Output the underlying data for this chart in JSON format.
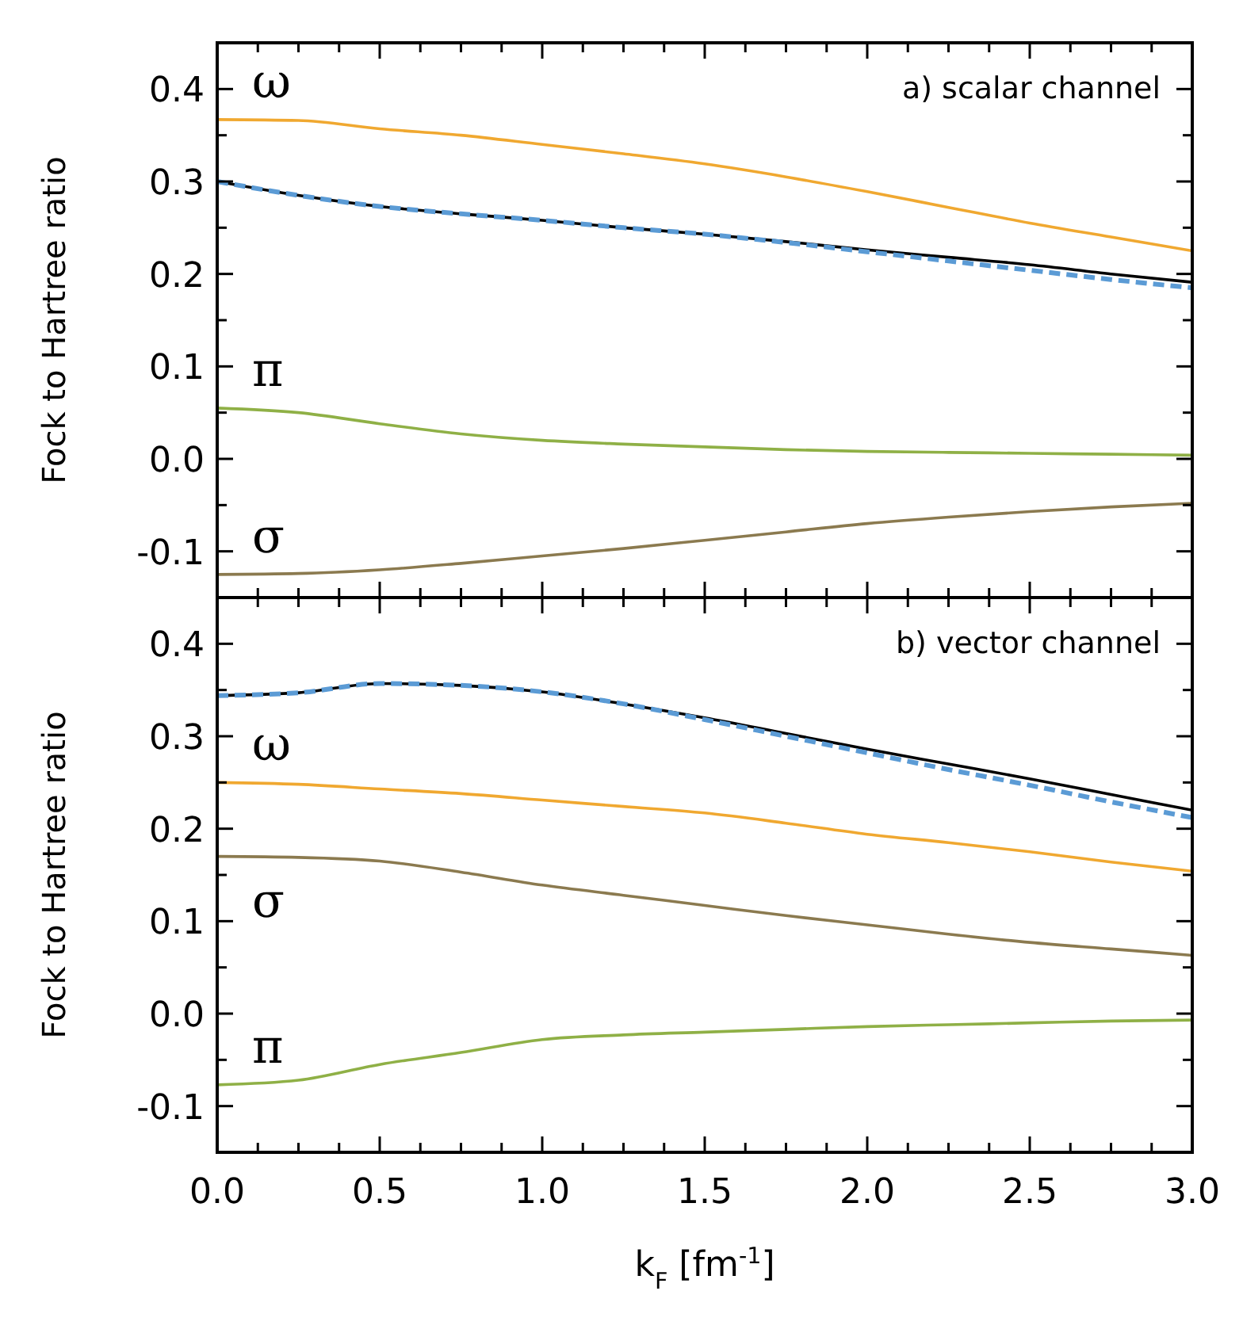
{
  "chart_data": [
    {
      "type": "line",
      "ylabel": "Fock to Hartree ratio",
      "annotations": [
        "a) scalar channel"
      ],
      "x": [
        0,
        0.25,
        0.5,
        0.75,
        1,
        1.25,
        1.5,
        1.75,
        2,
        2.25,
        2.5,
        2.75,
        3
      ],
      "xlim": [
        0,
        3
      ],
      "ylim": [
        -0.15,
        0.45
      ],
      "tick_labels": "y",
      "xticks": [
        0,
        {
          "value": 0.125,
          "label": null
        },
        {
          "value": 0.25,
          "label": null
        },
        {
          "value": 0.375,
          "label": null
        },
        0.5,
        {
          "value": 0.625,
          "label": null
        },
        {
          "value": 0.75,
          "label": null
        },
        {
          "value": 0.875,
          "label": null
        },
        1,
        {
          "value": 1.125,
          "label": null
        },
        {
          "value": 1.25,
          "label": null
        },
        {
          "value": 1.375,
          "label": null
        },
        1.5,
        {
          "value": 1.625,
          "label": null
        },
        {
          "value": 1.75,
          "label": null
        },
        {
          "value": 1.875,
          "label": null
        },
        2,
        {
          "value": 2.125,
          "label": null
        },
        {
          "value": 2.25,
          "label": null
        },
        {
          "value": 2.375,
          "label": null
        },
        2.5,
        {
          "value": 2.625,
          "label": null
        },
        {
          "value": 2.75,
          "label": null
        },
        {
          "value": 2.875,
          "label": null
        },
        3
      ],
      "yticks": [
        {
          "value": -0.15,
          "label": null
        },
        -0.1,
        {
          "value": -0.05,
          "label": null
        },
        {
          "value": 0,
          "label": "0.0"
        },
        {
          "value": 0.05,
          "label": null
        },
        0.1,
        {
          "value": 0.15,
          "label": null
        },
        0.2,
        {
          "value": 0.25,
          "label": null
        },
        0.3,
        {
          "value": 0.35,
          "label": null
        },
        0.4,
        {
          "value": 0.45,
          "label": null
        }
      ],
      "series": [
        {
          "color": "#000000",
          "line_style": "solid",
          "values": [
            0.3,
            0.285,
            0.273,
            0.265,
            0.258,
            0.25,
            0.243,
            0.235,
            0.226,
            0.218,
            0.21,
            0.2,
            0.191
          ]
        },
        {
          "color": "#5b9bd5",
          "line_style": "dashed",
          "values": [
            0.3,
            0.285,
            0.273,
            0.265,
            0.258,
            0.25,
            0.243,
            0.234,
            0.224,
            0.214,
            0.204,
            0.194,
            0.185
          ]
        },
        {
          "name": "ω",
          "color": "#f0a830",
          "line_style": "solid",
          "values": [
            0.367,
            0.366,
            0.357,
            0.35,
            0.34,
            0.33,
            0.319,
            0.305,
            0.289,
            0.272,
            0.255,
            0.24,
            0.225
          ]
        },
        {
          "name": "π",
          "color": "#8fb046",
          "line_style": "solid",
          "values": [
            0.055,
            0.05,
            0.038,
            0.027,
            0.02,
            0.016,
            0.013,
            0.01,
            0.008,
            0.007,
            0.006,
            0.005,
            0.004
          ]
        },
        {
          "name": "σ",
          "color": "#8b7a4f",
          "line_style": "solid",
          "values": [
            -0.125,
            -0.124,
            -0.12,
            -0.113,
            -0.105,
            -0.097,
            -0.088,
            -0.079,
            -0.07,
            -0.063,
            -0.057,
            -0.052,
            -0.048
          ]
        }
      ]
    },
    {
      "type": "line",
      "ylabel": "Fock to Hartree ratio",
      "xlabel": "k$_{F}$ [fm$^{-1}$]",
      "annotations": [
        "b) vector channel"
      ],
      "x": [
        0,
        0.25,
        0.5,
        0.75,
        1,
        1.25,
        1.5,
        1.75,
        2,
        2.25,
        2.5,
        2.75,
        3
      ],
      "xlim": [
        0,
        3
      ],
      "ylim": [
        -0.15,
        0.45
      ],
      "xticks": [
        {
          "value": 0,
          "label": "0.0"
        },
        {
          "value": 0.125,
          "label": null
        },
        {
          "value": 0.25,
          "label": null
        },
        {
          "value": 0.375,
          "label": null
        },
        0.5,
        {
          "value": 0.625,
          "label": null
        },
        {
          "value": 0.75,
          "label": null
        },
        {
          "value": 0.875,
          "label": null
        },
        {
          "value": 1,
          "label": "1.0"
        },
        {
          "value": 1.125,
          "label": null
        },
        {
          "value": 1.25,
          "label": null
        },
        {
          "value": 1.375,
          "label": null
        },
        1.5,
        {
          "value": 1.625,
          "label": null
        },
        {
          "value": 1.75,
          "label": null
        },
        {
          "value": 1.875,
          "label": null
        },
        {
          "value": 2,
          "label": "2.0"
        },
        {
          "value": 2.125,
          "label": null
        },
        {
          "value": 2.25,
          "label": null
        },
        {
          "value": 2.375,
          "label": null
        },
        2.5,
        {
          "value": 2.625,
          "label": null
        },
        {
          "value": 2.75,
          "label": null
        },
        {
          "value": 2.875,
          "label": null
        },
        {
          "value": 3,
          "label": "3.0"
        }
      ],
      "yticks": [
        {
          "value": -0.15,
          "label": null
        },
        -0.1,
        {
          "value": -0.05,
          "label": null
        },
        {
          "value": 0,
          "label": "0.0"
        },
        {
          "value": 0.05,
          "label": null
        },
        0.1,
        {
          "value": 0.15,
          "label": null
        },
        0.2,
        {
          "value": 0.25,
          "label": null
        },
        0.3,
        {
          "value": 0.35,
          "label": null
        },
        0.4,
        {
          "value": 0.45,
          "label": null
        }
      ],
      "series": [
        {
          "color": "#000000",
          "line_style": "solid",
          "values": [
            0.344,
            0.347,
            0.357,
            0.355,
            0.348,
            0.335,
            0.32,
            0.303,
            0.286,
            0.27,
            0.254,
            0.237,
            0.22
          ]
        },
        {
          "color": "#5b9bd5",
          "line_style": "dashed",
          "values": [
            0.344,
            0.347,
            0.357,
            0.355,
            0.348,
            0.335,
            0.318,
            0.3,
            0.282,
            0.264,
            0.247,
            0.229,
            0.212
          ]
        },
        {
          "name": "ω",
          "color": "#f0a830",
          "line_style": "solid",
          "values": [
            0.25,
            0.248,
            0.243,
            0.238,
            0.231,
            0.224,
            0.217,
            0.206,
            0.194,
            0.185,
            0.175,
            0.164,
            0.154
          ]
        },
        {
          "name": "σ",
          "color": "#8b7a4f",
          "line_style": "solid",
          "values": [
            0.17,
            0.169,
            0.165,
            0.153,
            0.139,
            0.128,
            0.117,
            0.106,
            0.096,
            0.086,
            0.077,
            0.07,
            0.063
          ]
        },
        {
          "name": "π",
          "color": "#8fb046",
          "line_style": "solid",
          "values": [
            -0.077,
            -0.072,
            -0.055,
            -0.042,
            -0.028,
            -0.023,
            -0.02,
            -0.017,
            -0.014,
            -0.012,
            -0.01,
            -0.008,
            -0.007
          ]
        }
      ]
    }
  ]
}
